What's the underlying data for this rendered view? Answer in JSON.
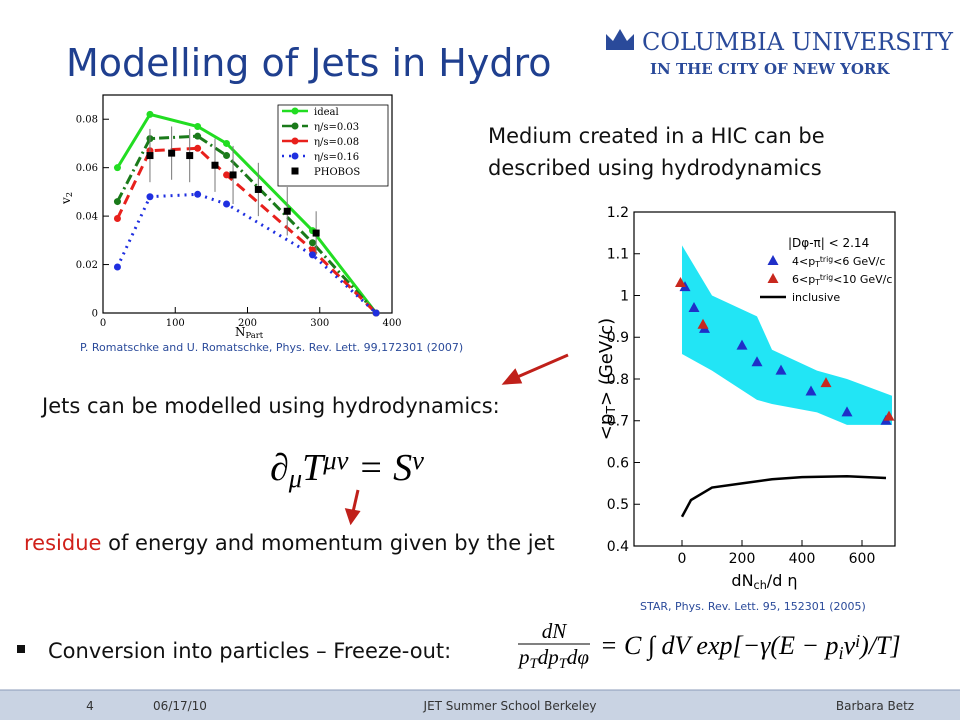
{
  "header": {
    "title": "Modelling of Jets in Hydro",
    "logo_name": "COLUMBIA UNIVERSITY",
    "logo_tagline": "IN THE CITY OF NEW YORK"
  },
  "body": {
    "medium_line1": "Medium created in a HIC can be",
    "medium_line2": "described using hydrodynamics",
    "citation_left": "P. Romatschke and U. Romatschke, Phys. Rev. Lett. 99,172301 (2007)",
    "jets_text": "Jets can be modelled using hydrodynamics:",
    "equation1": [
      {
        "t": "∂"
      },
      {
        "t": "μ",
        "s": "sub"
      },
      {
        "t": "T"
      },
      {
        "t": "μν",
        "s": "sup"
      },
      {
        "t": " = S"
      },
      {
        "t": "ν",
        "s": "sup"
      }
    ],
    "residue_word": "residue",
    "residue_rest": " of energy and momentum given by the jet",
    "citation_right": "STAR, Phys. Rev. Lett. 95, 152301 (2005)",
    "bullet_text": "Conversion into particles – Freeze-out:",
    "equation2_numerator": [
      {
        "t": "dN"
      }
    ],
    "equation2_denominator": [
      {
        "t": "p"
      },
      {
        "t": "T",
        "s": "sub"
      },
      {
        "t": "dp"
      },
      {
        "t": "T",
        "s": "sub"
      },
      {
        "t": "dφ"
      }
    ],
    "equation2_rhs": [
      {
        "t": "= C ∫ dV exp[−γ(E − p"
      },
      {
        "t": "i",
        "s": "sub"
      },
      {
        "t": "v"
      },
      {
        "t": "i",
        "s": "sup"
      },
      {
        "t": ")/T]"
      }
    ]
  },
  "footer": {
    "page": "4",
    "date": "06/17/10",
    "event": "JET Summer School Berkeley",
    "author": "Barbara Betz"
  },
  "chart_data": [
    {
      "type": "line",
      "xlabel": [
        {
          "t": "N"
        },
        {
          "t": "Part",
          "s": "sub"
        }
      ],
      "ylabel": [
        {
          "t": "v"
        },
        {
          "t": "2",
          "s": "sub"
        }
      ],
      "xlim": [
        0,
        400
      ],
      "ylim": [
        0,
        0.09
      ],
      "xticks": [
        0,
        100,
        200,
        300,
        400
      ],
      "yticks": [
        0,
        0.02,
        0.04,
        0.06,
        0.08
      ],
      "legend": "upper right",
      "series": [
        {
          "name": "ideal",
          "color": "#22dd22",
          "dash": "solid",
          "marker": "circle",
          "x": [
            20,
            65,
            131,
            171,
            290,
            378
          ],
          "values": [
            0.06,
            0.082,
            0.077,
            0.07,
            0.034,
            0
          ]
        },
        {
          "name": "η/s=0.03",
          "color": "#1a7a1a",
          "dash": "dashdot",
          "marker": "circle",
          "x": [
            20,
            65,
            131,
            171,
            290,
            378
          ],
          "values": [
            0.046,
            0.072,
            0.073,
            0.065,
            0.029,
            0
          ]
        },
        {
          "name": "η/s=0.08",
          "color": "#e8201c",
          "dash": "dash",
          "marker": "circle",
          "x": [
            20,
            65,
            131,
            171,
            290,
            378
          ],
          "values": [
            0.039,
            0.067,
            0.068,
            0.057,
            0.026,
            0
          ]
        },
        {
          "name": "η/s=0.16",
          "color": "#1f2fe0",
          "dash": "dot",
          "marker": "circle",
          "x": [
            20,
            65,
            131,
            171,
            290,
            378
          ],
          "values": [
            0.019,
            0.048,
            0.049,
            0.045,
            0.024,
            0
          ]
        },
        {
          "name": "PHOBOS",
          "color": "#000000",
          "dash": "none",
          "marker": "square",
          "x": [
            65,
            95,
            120,
            155,
            180,
            215,
            255,
            295
          ],
          "values": [
            0.065,
            0.066,
            0.065,
            0.061,
            0.057,
            0.051,
            0.042,
            0.033
          ],
          "errors": [
            0.011,
            0.011,
            0.011,
            0.011,
            0.012,
            0.011,
            0.01,
            0.009
          ]
        }
      ]
    },
    {
      "type": "scatter",
      "xlabel": [
        {
          "t": "dN"
        },
        {
          "t": "ch",
          "s": "sub"
        },
        {
          "t": "/d η"
        }
      ],
      "ylabel": [
        {
          "t": "<p"
        },
        {
          "t": "T",
          "s": "sub"
        },
        {
          "t": ">   (GeV/c)"
        }
      ],
      "xlim": [
        -160,
        710
      ],
      "ylim": [
        0.4,
        1.2
      ],
      "xticks": [
        0,
        200,
        400,
        600
      ],
      "yticks": [
        0.4,
        0.5,
        0.6,
        0.7,
        0.8,
        0.9,
        1,
        1.1,
        1.2
      ],
      "legend": "upper right",
      "legend_title": "|Dφ-π| < 2.14",
      "band": {
        "color": "#22e5f5",
        "x": [
          0,
          100,
          250,
          300,
          450,
          550,
          700
        ],
        "upper": [
          1.12,
          1.0,
          0.95,
          0.87,
          0.82,
          0.8,
          0.76
        ],
        "lower": [
          0.86,
          0.82,
          0.75,
          0.74,
          0.72,
          0.69,
          0.69
        ]
      },
      "series": [
        {
          "name": [
            {
              "t": "4<p"
            },
            {
              "t": "T",
              "s": "sub"
            },
            {
              "t": "trig",
              "s": "sup"
            },
            {
              "t": "<6 GeV/c"
            }
          ],
          "color": "#1f2fc8",
          "dash": "none",
          "marker": "triangle",
          "x": [
            10,
            40,
            75,
            200,
            250,
            330,
            430,
            550,
            680
          ],
          "values": [
            1.02,
            0.97,
            0.92,
            0.88,
            0.84,
            0.82,
            0.77,
            0.72,
            0.7
          ]
        },
        {
          "name": [
            {
              "t": "6<p"
            },
            {
              "t": "T",
              "s": "sub"
            },
            {
              "t": "trig",
              "s": "sup"
            },
            {
              "t": "<10 GeV/c"
            }
          ],
          "color": "#c8281e",
          "dash": "none",
          "marker": "triangle",
          "x": [
            -5,
            70,
            480,
            690
          ],
          "values": [
            1.03,
            0.93,
            0.79,
            0.71
          ]
        },
        {
          "name": "inclusive",
          "color": "#000000",
          "dash": "solid",
          "marker": "none",
          "x": [
            0,
            30,
            100,
            200,
            300,
            400,
            550,
            680
          ],
          "values": [
            0.47,
            0.51,
            0.54,
            0.55,
            0.56,
            0.565,
            0.567,
            0.563
          ]
        }
      ]
    }
  ]
}
